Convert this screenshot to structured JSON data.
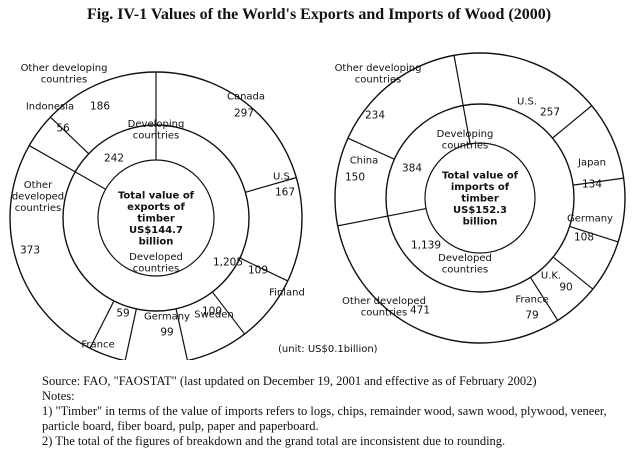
{
  "title": "Fig. IV-1   Values of the World's Exports and Imports of Wood (2000)",
  "unit": "(unit: US$0.1billion)",
  "chart_data": [
    {
      "type": "pie",
      "name": "exports",
      "center_text": [
        "Total value of",
        "exports of",
        "timber",
        "US$144.7",
        "billion"
      ],
      "inner": [
        {
          "label": [
            "Developing",
            "countries"
          ],
          "value": 242
        },
        {
          "label": [
            "Developed",
            "countries"
          ],
          "value": 1205
        }
      ],
      "outer": [
        {
          "label": [
            "Canada"
          ],
          "value": 297
        },
        {
          "label": [
            "U.S."
          ],
          "value": 167
        },
        {
          "label": [
            "Finland"
          ],
          "value": 109
        },
        {
          "label": [
            "Sweden"
          ],
          "value": 100
        },
        {
          "label": [
            "Germany"
          ],
          "value": 99
        },
        {
          "label": [
            "France"
          ],
          "value": 59
        },
        {
          "label": [
            "Other",
            "developed",
            "countries"
          ],
          "value": 373
        },
        {
          "label": [
            "Indonesia"
          ],
          "value": 56
        },
        {
          "label": [
            "Other developing",
            "countries"
          ],
          "value": 186
        }
      ]
    },
    {
      "type": "pie",
      "name": "imports",
      "center_text": [
        "Total value of",
        "imports of",
        "timber",
        "US$152.3",
        "billion"
      ],
      "inner": [
        {
          "label": [
            "Developing",
            "countries"
          ],
          "value": 384
        },
        {
          "label": [
            "Developed",
            "countries"
          ],
          "value": 1139
        }
      ],
      "outer": [
        {
          "label": [
            "U.S."
          ],
          "value": 257
        },
        {
          "label": [
            "Japan"
          ],
          "value": 134
        },
        {
          "label": [
            "Germany"
          ],
          "value": 108
        },
        {
          "label": [
            "U.K."
          ],
          "value": 90
        },
        {
          "label": [
            "France"
          ],
          "value": 79
        },
        {
          "label": [
            "Other developed",
            "countries"
          ],
          "value": 471
        },
        {
          "label": [
            "China"
          ],
          "value": 150
        },
        {
          "label": [
            "Other developing",
            "countries"
          ],
          "value": 234
        }
      ]
    }
  ],
  "notes": [
    "Source: FAO, \"FAOSTAT\" (last updated on December 19, 2001 and effective as of February 2002)",
    "Notes:",
    "1) \"Timber\" in terms of the value of imports refers to logs, chips, remainder wood, sawn wood, plywood, veneer, particle board, fiber board, pulp, paper and paperboard.",
    "2) The total of the figures of breakdown and the grand total are inconsistent due to rounding."
  ]
}
